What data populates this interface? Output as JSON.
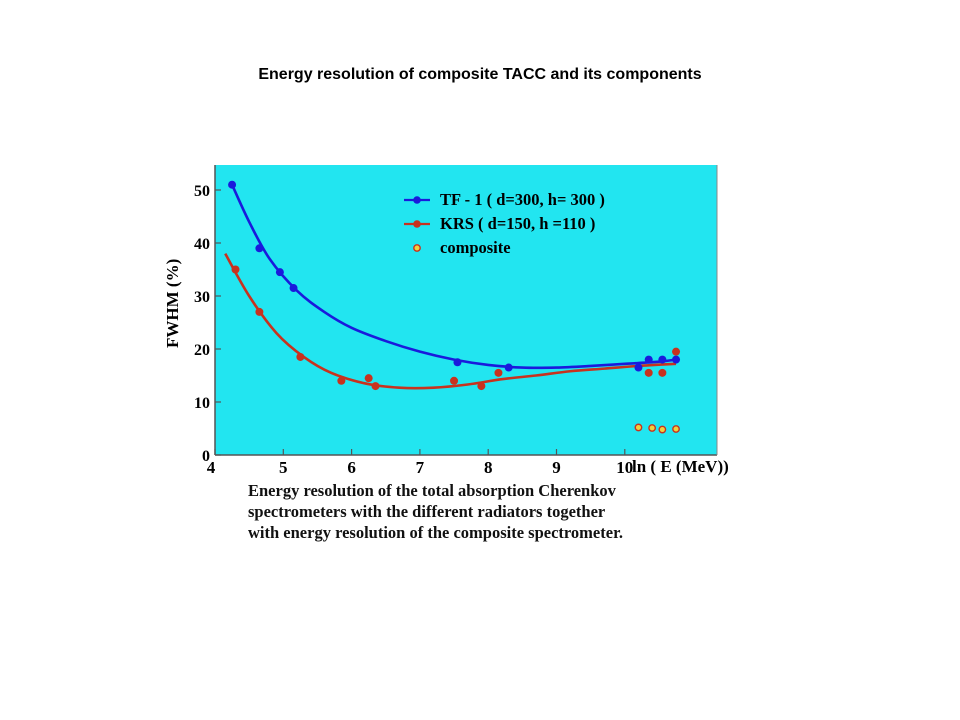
{
  "page_title": "Energy resolution of composite TACC and its components",
  "caption": [
    "Energy resolution of the total absorption Cherenkov",
    "spectrometers  with the different radiators together",
    "with energy resolution of the composite spectrometer."
  ],
  "chart_data": {
    "type": "scatter",
    "title": "Energy resolution of composite TACC and its components",
    "xlabel": "ln ( E (MeV))",
    "ylabel": "FWHM (%)",
    "xlim": [
      4,
      11.5
    ],
    "ylim": [
      0,
      55
    ],
    "x_ticks": [
      "4",
      "5",
      "6",
      "7",
      "8",
      "9",
      "10"
    ],
    "y_ticks": [
      "0",
      "10",
      "20",
      "30",
      "40",
      "50"
    ],
    "legend_position": "top-center",
    "background": "#22e5f0",
    "series": [
      {
        "name": "TF - 1 ( d=300, h= 300 )",
        "color": "#1a1adc",
        "marker": "filled-circle-with-fitted-curve",
        "points": [
          [
            4.25,
            51
          ],
          [
            4.65,
            39
          ],
          [
            4.95,
            34.5
          ],
          [
            5.15,
            31.5
          ],
          [
            7.55,
            17.5
          ],
          [
            8.3,
            16.5
          ],
          [
            10.2,
            16.5
          ],
          [
            10.35,
            18
          ],
          [
            10.55,
            18
          ],
          [
            10.75,
            18
          ]
        ],
        "curve": [
          [
            4.25,
            51
          ],
          [
            4.5,
            44
          ],
          [
            4.8,
            37
          ],
          [
            5.2,
            31
          ],
          [
            5.6,
            27
          ],
          [
            6.0,
            24
          ],
          [
            6.5,
            21.5
          ],
          [
            7.0,
            19.5
          ],
          [
            7.5,
            18
          ],
          [
            8.0,
            17
          ],
          [
            8.5,
            16.5
          ],
          [
            9.0,
            16.5
          ],
          [
            9.5,
            16.8
          ],
          [
            10.0,
            17.2
          ],
          [
            10.5,
            17.6
          ],
          [
            10.75,
            18
          ]
        ]
      },
      {
        "name": "KRS ( d=150, h =110 )",
        "color": "#c8321e",
        "marker": "filled-circle-with-fitted-curve",
        "points": [
          [
            4.3,
            35
          ],
          [
            4.65,
            27
          ],
          [
            5.25,
            18.5
          ],
          [
            5.85,
            14
          ],
          [
            6.25,
            14.5
          ],
          [
            6.35,
            13
          ],
          [
            7.5,
            14
          ],
          [
            7.9,
            13
          ],
          [
            8.15,
            15.5
          ],
          [
            10.35,
            15.5
          ],
          [
            10.55,
            15.5
          ],
          [
            10.75,
            19.5
          ]
        ],
        "curve": [
          [
            4.15,
            38
          ],
          [
            4.5,
            30
          ],
          [
            4.9,
            23
          ],
          [
            5.3,
            18.5
          ],
          [
            5.7,
            15.5
          ],
          [
            6.2,
            13.5
          ],
          [
            6.7,
            12.7
          ],
          [
            7.2,
            12.7
          ],
          [
            7.7,
            13.3
          ],
          [
            8.2,
            14.3
          ],
          [
            8.7,
            15
          ],
          [
            9.2,
            15.8
          ],
          [
            9.7,
            16.3
          ],
          [
            10.2,
            16.8
          ],
          [
            10.75,
            17.2
          ]
        ]
      },
      {
        "name": "composite",
        "color": "#f0d23c",
        "edge_color": "#c8321e",
        "marker": "open-circle",
        "points": [
          [
            10.2,
            5.2
          ],
          [
            10.4,
            5.1
          ],
          [
            10.55,
            4.8
          ],
          [
            10.75,
            4.9
          ]
        ]
      }
    ]
  }
}
